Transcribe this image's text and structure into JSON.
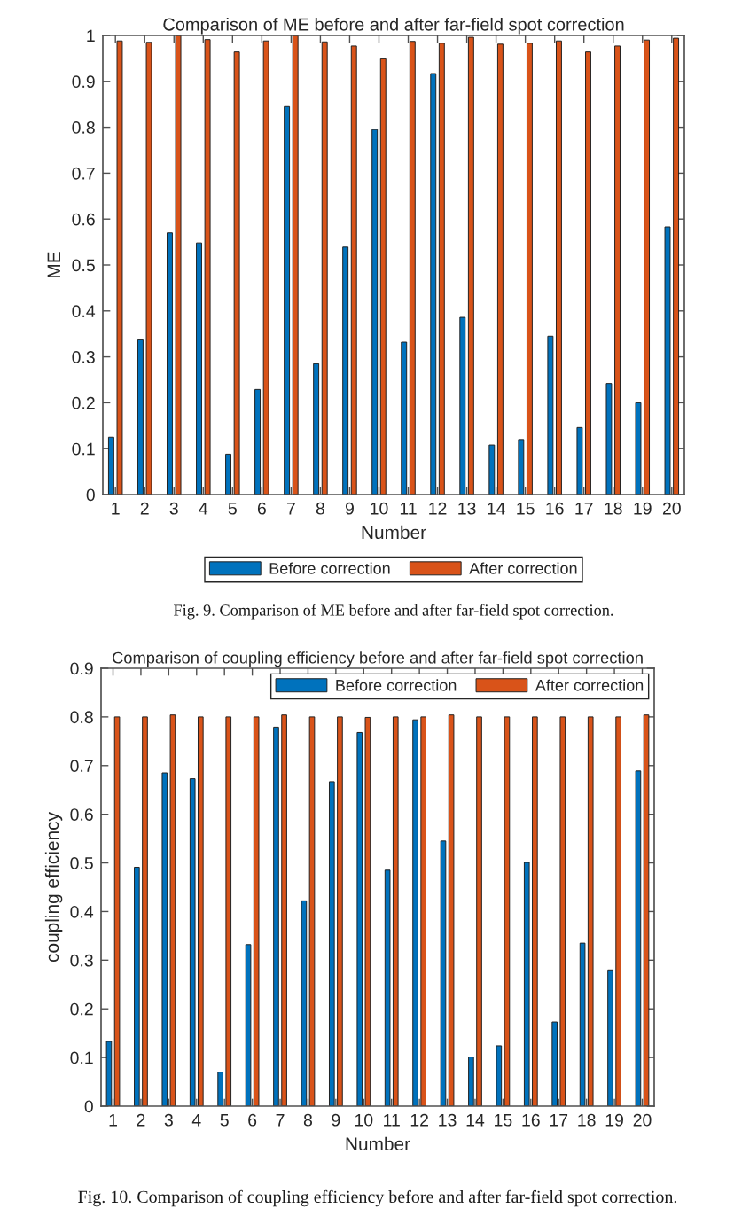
{
  "chart_data": [
    {
      "type": "bar",
      "title": "Comparison of ME before and after far-field spot correction",
      "xlabel": "Number",
      "ylabel": "ME",
      "categories": [
        "1",
        "2",
        "3",
        "4",
        "5",
        "6",
        "7",
        "8",
        "9",
        "10",
        "11",
        "12",
        "13",
        "14",
        "15",
        "16",
        "17",
        "18",
        "19",
        "20"
      ],
      "series": [
        {
          "name": "Before correction",
          "color": "#0072bd",
          "values": [
            0.125,
            0.337,
            0.57,
            0.548,
            0.088,
            0.229,
            0.845,
            0.285,
            0.539,
            0.795,
            0.332,
            0.917,
            0.386,
            0.108,
            0.12,
            0.345,
            0.146,
            0.242,
            0.2,
            0.583
          ]
        },
        {
          "name": "After correction",
          "color": "#d95319",
          "values": [
            0.988,
            0.985,
            1.0,
            0.991,
            0.964,
            0.988,
            1.0,
            0.986,
            0.977,
            0.949,
            0.987,
            0.983,
            0.996,
            0.981,
            0.983,
            0.988,
            0.964,
            0.977,
            0.99,
            0.994
          ]
        }
      ],
      "ylim": [
        0,
        1
      ],
      "yticks": [
        0,
        0.1,
        0.2,
        0.3,
        0.4,
        0.5,
        0.6,
        0.7,
        0.8,
        0.9,
        1
      ],
      "legend": "bottom",
      "annotations": [
        "Fig. 9. Comparison of ME before and after far-field spot correction."
      ]
    },
    {
      "type": "bar",
      "title": "Comparison of coupling efficiency before and after far-field spot correction",
      "xlabel": "Number",
      "ylabel": "coupling efficiency",
      "categories": [
        "1",
        "2",
        "3",
        "4",
        "5",
        "6",
        "7",
        "8",
        "9",
        "10",
        "11",
        "12",
        "13",
        "14",
        "15",
        "16",
        "17",
        "18",
        "19",
        "20"
      ],
      "series": [
        {
          "name": "Before correction",
          "color": "#0072bd",
          "values": [
            0.133,
            0.491,
            0.685,
            0.673,
            0.07,
            0.332,
            0.779,
            0.422,
            0.667,
            0.768,
            0.485,
            0.794,
            0.545,
            0.101,
            0.124,
            0.501,
            0.173,
            0.335,
            0.28,
            0.689
          ]
        },
        {
          "name": "After correction",
          "color": "#d95319",
          "values": [
            0.8,
            0.8,
            0.804,
            0.8,
            0.8,
            0.8,
            0.804,
            0.8,
            0.8,
            0.799,
            0.8,
            0.8,
            0.804,
            0.8,
            0.8,
            0.8,
            0.8,
            0.8,
            0.8,
            0.804
          ]
        }
      ],
      "ylim": [
        0,
        0.9
      ],
      "yticks": [
        0,
        0.1,
        0.2,
        0.3,
        0.4,
        0.5,
        0.6,
        0.7,
        0.8,
        0.9
      ],
      "legend": "top right",
      "annotations": [
        "Fig. 10. Comparison of coupling efficiency before and after far-field spot correction."
      ]
    }
  ]
}
